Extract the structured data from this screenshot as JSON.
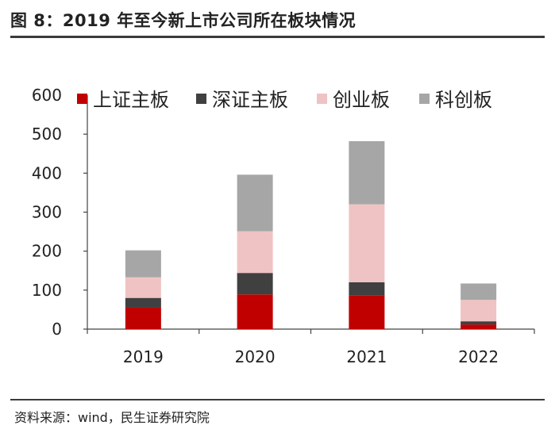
{
  "figure": {
    "title": "图 8：2019 年至今新上市公司所在板块情况",
    "source": "资料来源：wind，民生证券研究院"
  },
  "chart_data": {
    "type": "bar",
    "stacked": true,
    "categories": [
      "2019",
      "2020",
      "2021",
      "2022"
    ],
    "series": [
      {
        "name": "上证主板",
        "color": "#c00000",
        "values": [
          55,
          89,
          87,
          12
        ]
      },
      {
        "name": "深证主板",
        "color": "#404040",
        "values": [
          25,
          55,
          33,
          8
        ]
      },
      {
        "name": "创业板",
        "color": "#efc3c3",
        "values": [
          53,
          107,
          200,
          55
        ]
      },
      {
        "name": "科创板",
        "color": "#a6a6a6",
        "values": [
          69,
          145,
          162,
          42
        ]
      }
    ],
    "ylim": [
      0,
      600
    ],
    "yticks": [
      0,
      100,
      200,
      300,
      400,
      500,
      600
    ],
    "grid": false,
    "legend_position": "top"
  }
}
